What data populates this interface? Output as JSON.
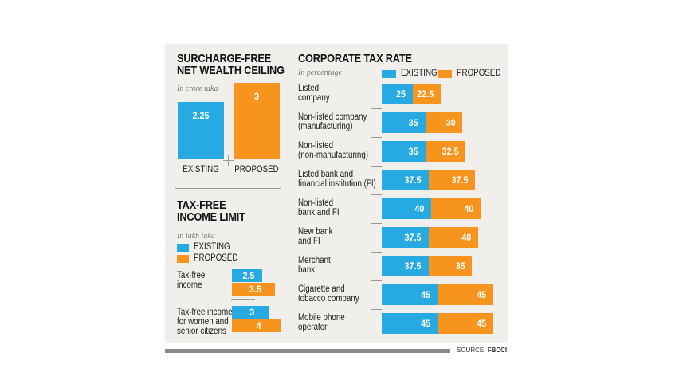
{
  "chart_data": [
    {
      "type": "bar",
      "title": "SURCHARGE-FREE\nNET WEALTH CEILING",
      "subtitle": "In crore taka",
      "categories": [
        "EXISTING",
        "PROPOSED"
      ],
      "values": [
        2.25,
        3
      ],
      "colors": [
        "#27aae1",
        "#f7941d"
      ]
    },
    {
      "type": "bar",
      "orientation": "horizontal",
      "title": "TAX-FREE\nINCOME LIMIT",
      "subtitle": "In lakh taka",
      "categories": [
        "Tax-free\nincome",
        "Tax-free income\nfor women and\nsenior citizens"
      ],
      "series": [
        {
          "name": "EXISTING",
          "color": "#27aae1",
          "values": [
            2.5,
            3
          ]
        },
        {
          "name": "PROPOSED",
          "color": "#f7941d",
          "values": [
            3.5,
            4
          ]
        }
      ]
    },
    {
      "type": "bar",
      "orientation": "horizontal",
      "stacked": true,
      "title": "CORPORATE TAX RATE",
      "subtitle": "In percentage",
      "categories": [
        "Listed\ncompany",
        "Non-listed company\n(manufacturing)",
        "Non-listed\n(non-manufacturing)",
        "Listed bank and\nfinancial institution (FI)",
        "Non-listed\nbank and FI",
        "New bank\nand FI",
        "Merchant\nbank",
        "Cigarette and\ntobacco company",
        "Mobile phone\noperator"
      ],
      "series": [
        {
          "name": "EXISTING",
          "color": "#27aae1",
          "values": [
            25,
            35,
            35,
            37.5,
            40,
            37.5,
            37.5,
            45,
            45
          ]
        },
        {
          "name": "PROPOSED",
          "color": "#f7941d",
          "values": [
            22.5,
            30,
            32.5,
            37.5,
            40,
            40,
            35,
            45,
            45
          ]
        }
      ]
    }
  ],
  "source_label": "SOURCE:",
  "source": "FBCCI"
}
